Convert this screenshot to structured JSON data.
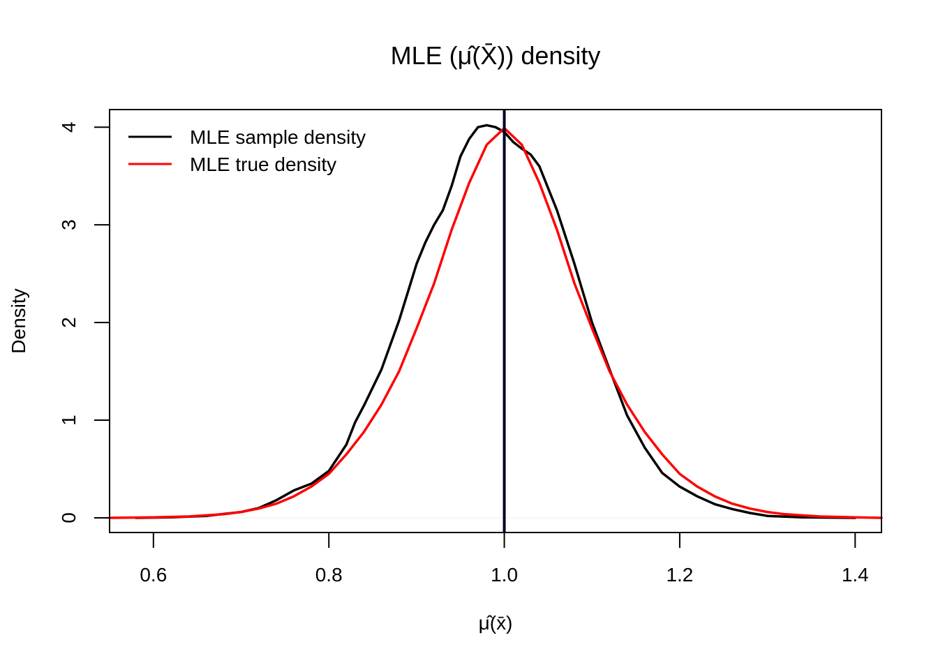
{
  "chart_data": {
    "type": "line",
    "title": "MLE (μ̂(X̄)) density",
    "xlabel": "μ̂(x̄)",
    "ylabel": "Density",
    "xlim": [
      0.55,
      1.43
    ],
    "ylim": [
      -0.15,
      4.18
    ],
    "xticks": [
      0.6,
      0.8,
      1.0,
      1.2,
      1.4
    ],
    "xtick_labels": [
      "0.6",
      "0.8",
      "1.0",
      "1.2",
      "1.4"
    ],
    "yticks": [
      0,
      1,
      2,
      3,
      4
    ],
    "ytick_labels": [
      "0",
      "1",
      "2",
      "3",
      "4"
    ],
    "grid": false,
    "legend": {
      "position": "top-left"
    },
    "vline": {
      "x": 1.0,
      "color": "#000022"
    },
    "series": [
      {
        "name": "MLE sample density",
        "color": "#000000",
        "x": [
          0.58,
          0.62,
          0.66,
          0.7,
          0.72,
          0.74,
          0.76,
          0.78,
          0.8,
          0.82,
          0.83,
          0.84,
          0.86,
          0.88,
          0.9,
          0.91,
          0.92,
          0.93,
          0.94,
          0.95,
          0.96,
          0.97,
          0.98,
          0.99,
          1.0,
          1.01,
          1.02,
          1.03,
          1.04,
          1.06,
          1.08,
          1.1,
          1.12,
          1.14,
          1.16,
          1.18,
          1.2,
          1.22,
          1.24,
          1.26,
          1.28,
          1.3,
          1.34,
          1.4
        ],
        "y": [
          0.0,
          0.005,
          0.02,
          0.06,
          0.1,
          0.18,
          0.28,
          0.35,
          0.48,
          0.75,
          0.98,
          1.15,
          1.52,
          2.02,
          2.6,
          2.82,
          3.0,
          3.15,
          3.4,
          3.7,
          3.88,
          4.0,
          4.02,
          4.0,
          3.95,
          3.85,
          3.78,
          3.72,
          3.6,
          3.15,
          2.6,
          2.0,
          1.52,
          1.05,
          0.72,
          0.46,
          0.32,
          0.22,
          0.14,
          0.09,
          0.05,
          0.02,
          0.005,
          0.0
        ]
      },
      {
        "name": "MLE true density",
        "color": "#ff0000",
        "x": [
          0.55,
          0.6,
          0.64,
          0.68,
          0.7,
          0.72,
          0.74,
          0.76,
          0.78,
          0.8,
          0.82,
          0.84,
          0.86,
          0.88,
          0.9,
          0.92,
          0.94,
          0.96,
          0.98,
          1.0,
          1.02,
          1.04,
          1.06,
          1.08,
          1.1,
          1.12,
          1.14,
          1.16,
          1.18,
          1.2,
          1.22,
          1.24,
          1.26,
          1.28,
          1.3,
          1.32,
          1.36,
          1.4,
          1.43
        ],
        "y": [
          0.0,
          0.005,
          0.014,
          0.037,
          0.06,
          0.095,
          0.145,
          0.22,
          0.32,
          0.45,
          0.65,
          0.88,
          1.16,
          1.5,
          1.94,
          2.4,
          2.95,
          3.43,
          3.82,
          3.99,
          3.82,
          3.43,
          2.95,
          2.4,
          1.94,
          1.5,
          1.16,
          0.88,
          0.65,
          0.45,
          0.32,
          0.22,
          0.145,
          0.095,
          0.06,
          0.037,
          0.014,
          0.005,
          0.0
        ]
      }
    ]
  }
}
